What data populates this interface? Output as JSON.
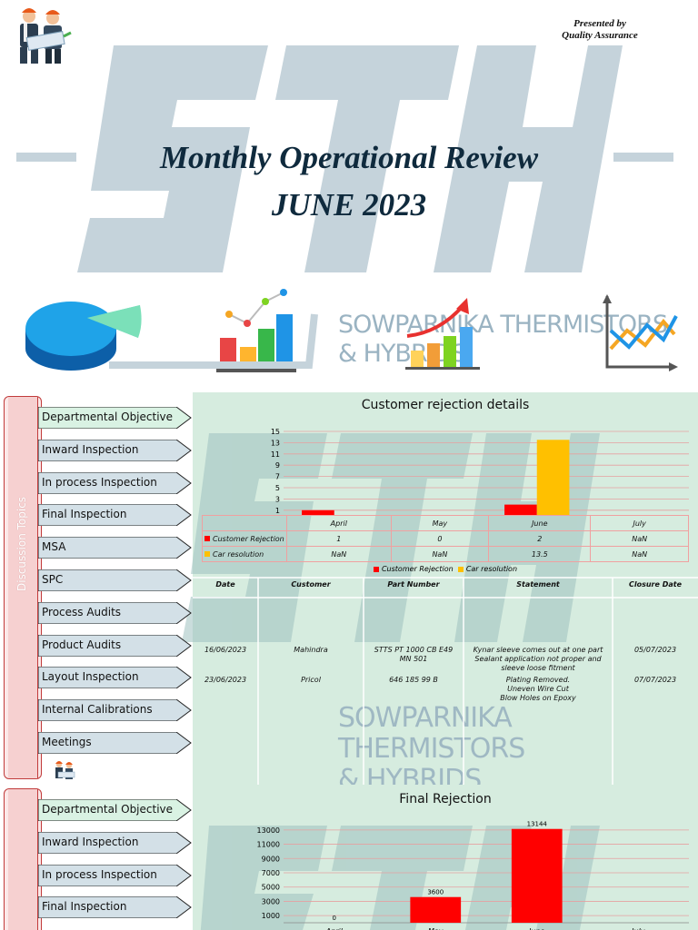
{
  "slide1": {
    "presented_by": "Presented by",
    "presented_dept": "Quality  Assurance",
    "title": "Monthly Operational Review",
    "subtitle": "JUNE 2023",
    "company_line1": "SOWPARNIKA THERMISTORS",
    "company_line2": "& HYBRIDS"
  },
  "topics": [
    "Departmental Objective",
    "Inward Inspection",
    "In process Inspection",
    "Final Inspection",
    "MSA",
    "SPC",
    "Process Audits",
    "Product Audits",
    "Layout Inspection",
    "Internal Calibrations",
    "Meetings"
  ],
  "sidebar_label": "Discussion Topics",
  "watermark": {
    "line1": "SOWPARNIKA THERMISTORS",
    "line2": "& HYBRIDS"
  },
  "colors": {
    "red": "#ff0000",
    "gold": "#ffc000",
    "panel": "#d6ecdf"
  },
  "chart_data": [
    {
      "type": "bar",
      "title": "Customer rejection details",
      "categories": [
        "April",
        "May",
        "June",
        "July"
      ],
      "y_ticks": [
        "15",
        "13",
        "11",
        "9",
        "7",
        "5",
        "3",
        "1"
      ],
      "ylim": [
        0,
        15
      ],
      "series": [
        {
          "name": "Customer Rejection",
          "values": [
            1,
            0,
            2,
            null
          ],
          "labels": [
            "1",
            "0",
            "2",
            "NaN"
          ],
          "color": "#ff0000"
        },
        {
          "name": "Car resolution",
          "values": [
            null,
            null,
            13.5,
            null
          ],
          "labels": [
            "NaN",
            "NaN",
            "13.5",
            "NaN"
          ],
          "color": "#ffc000"
        }
      ],
      "legend": "bottom"
    },
    {
      "type": "bar",
      "title": "Final Rejection",
      "categories": [
        "April",
        "May",
        "June",
        "July"
      ],
      "y_ticks": [
        "13000",
        "11000",
        "9000",
        "7000",
        "5000",
        "3000",
        "1000"
      ],
      "ylim": [
        0,
        14000
      ],
      "series": [
        {
          "name": "",
          "values": [
            0,
            3600,
            13144,
            null
          ],
          "data_labels": [
            "0",
            "3600",
            "13144",
            ""
          ],
          "color": "#ff0000"
        }
      ]
    }
  ],
  "rejection_table": {
    "headers": [
      "Date",
      "Customer",
      "Part Number",
      "Statement",
      "Closure Date"
    ],
    "rows": [
      {
        "date": "16/06/2023",
        "customer": "Mahindra",
        "part_l1": "STTS PT 1000  CB E49",
        "part_l2": "MN 501",
        "st_l1": "Kynar sleeve comes out at one part",
        "st_l2": "Sealant application not proper and",
        "st_l3": "sleeve loose fitment",
        "closure": "05/07/2023"
      },
      {
        "date": "23/06/2023",
        "customer": "Pricol",
        "part_l1": "646 185 99 B",
        "part_l2": "",
        "st_l1": "Plating Removed.",
        "st_l2": "Uneven Wire Cut",
        "st_l3": "Blow Holes on Epoxy",
        "closure": "07/07/2023"
      }
    ]
  }
}
